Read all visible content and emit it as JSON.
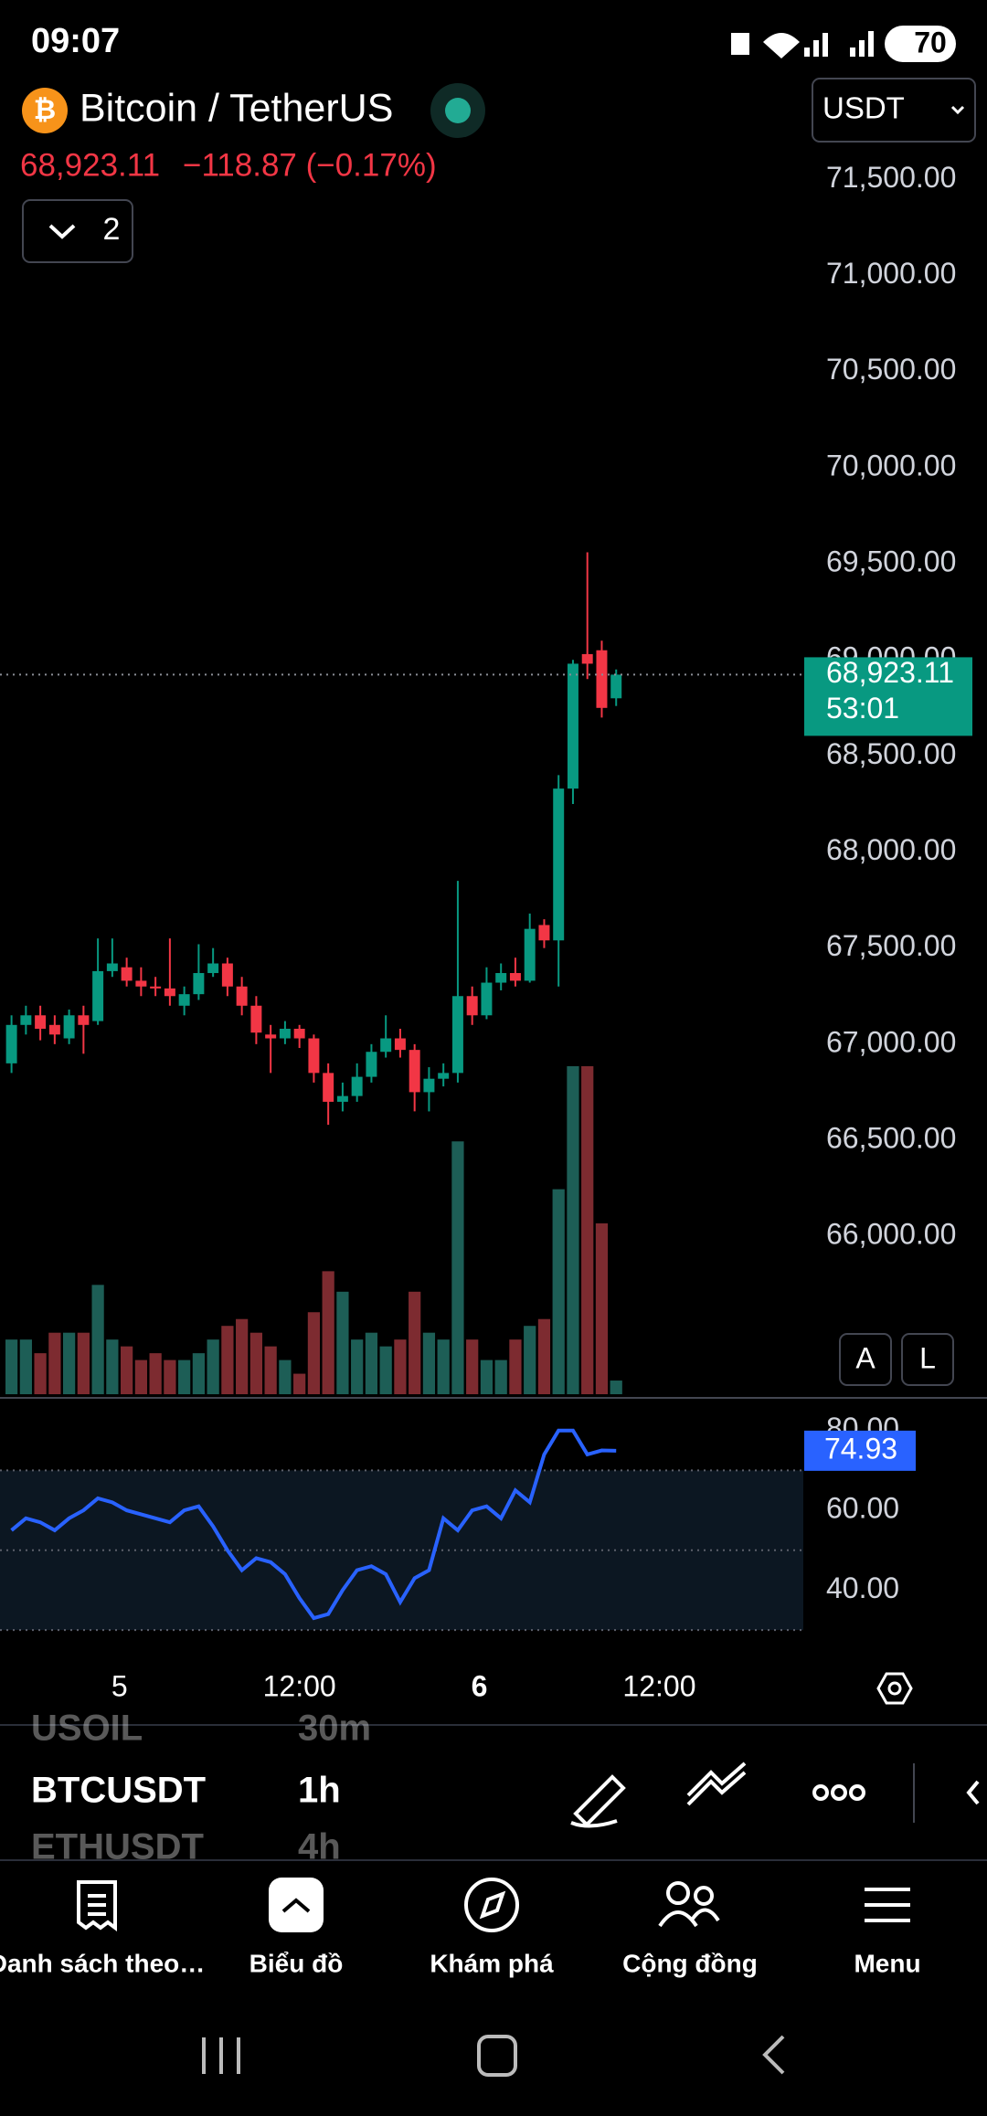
{
  "status_bar": {
    "time": "09:07",
    "battery": "70"
  },
  "header": {
    "symbol": "Bitcoin / TetherUS",
    "price": "68,923.11",
    "change": "−118.87 (−0.17%)",
    "indicator_count": "2",
    "currency": "USDT"
  },
  "scale_buttons": [
    "A",
    "L"
  ],
  "chart_data": [
    {
      "type": "candlestick",
      "up_color": "#089981",
      "down_color": "#f23645",
      "volume_up_color": "#1d5e56",
      "volume_down_color": "#7d2b30",
      "open": [
        66900,
        67100,
        67150,
        67100,
        67030,
        67150,
        67120,
        67380,
        67400,
        67330,
        67300,
        67290,
        67200,
        67260,
        67370,
        67420,
        67300,
        67200,
        67050,
        67030,
        67080,
        67030,
        66850,
        66700,
        66730,
        66830,
        66960,
        67030,
        66970,
        66750,
        66820,
        66850,
        67250,
        67150,
        67320,
        67370,
        67330,
        67620,
        67540,
        68330,
        69030,
        69050,
        68800
      ],
      "high": [
        67150,
        67200,
        67200,
        67150,
        67180,
        67200,
        67550,
        67550,
        67450,
        67400,
        67350,
        67550,
        67300,
        67520,
        67500,
        67450,
        67350,
        67250,
        67100,
        67120,
        67100,
        67050,
        66900,
        66800,
        66900,
        67000,
        67150,
        67080,
        67000,
        66880,
        66900,
        67850,
        67300,
        67400,
        67420,
        67450,
        67680,
        67650,
        68400,
        69000,
        69560,
        69100,
        68950
      ],
      "low": [
        66850,
        67050,
        67020,
        67000,
        67000,
        66950,
        67100,
        67350,
        67300,
        67250,
        67250,
        67200,
        67150,
        67230,
        67350,
        67250,
        67150,
        67000,
        66850,
        67000,
        66980,
        66800,
        66580,
        66650,
        66700,
        66800,
        66930,
        66930,
        66650,
        66650,
        66780,
        66800,
        67100,
        67130,
        67280,
        67300,
        67320,
        67500,
        67300,
        68250,
        68900,
        68700,
        68760
      ],
      "close": [
        67100,
        67150,
        67080,
        67050,
        67150,
        67100,
        67380,
        67420,
        67330,
        67300,
        67290,
        67250,
        67260,
        67370,
        67420,
        67300,
        67200,
        67060,
        67030,
        67080,
        67030,
        66850,
        66700,
        66730,
        66830,
        66960,
        67030,
        66970,
        66750,
        66820,
        66850,
        67250,
        67150,
        67320,
        67370,
        67330,
        67600,
        67540,
        68330,
        68980,
        68980,
        68750,
        68923.11
      ],
      "volume": [
        40,
        40,
        30,
        45,
        45,
        45,
        80,
        40,
        35,
        25,
        30,
        25,
        25,
        30,
        40,
        50,
        55,
        45,
        35,
        25,
        15,
        60,
        90,
        75,
        40,
        45,
        35,
        40,
        75,
        45,
        40,
        185,
        40,
        25,
        25,
        40,
        50,
        55,
        150,
        240,
        240,
        125,
        10
      ],
      "last_price": {
        "value": 68923.11,
        "label": "68,923.11"
      },
      "countdown": "53:01",
      "xlim": [
        -0.8,
        55
      ],
      "xticks": [
        {
          "value": 7.5,
          "label": "5"
        },
        {
          "value": 20,
          "label": "12:00"
        },
        {
          "value": 32.5,
          "label": "6"
        },
        {
          "value": 45,
          "label": "12:00"
        }
      ],
      "ylim": [
        65178,
        71721
      ],
      "yticks": [
        {
          "value": 66000,
          "label": "66,000.00"
        },
        {
          "value": 66500,
          "label": "66,500.00"
        },
        {
          "value": 67000,
          "label": "67,000.00"
        },
        {
          "value": 67500,
          "label": "67,500.00"
        },
        {
          "value": 68000,
          "label": "68,000.00"
        },
        {
          "value": 68500,
          "label": "68,500.00"
        },
        {
          "value": 69000,
          "label": "69,000.00"
        },
        {
          "value": 69500,
          "label": "69,500.00"
        },
        {
          "value": 70000,
          "label": "70,000.00"
        },
        {
          "value": 70500,
          "label": "70,500.00"
        },
        {
          "value": 71000,
          "label": "71,000.00"
        },
        {
          "value": 71500,
          "label": "71,500.00"
        }
      ]
    },
    {
      "type": "line",
      "color": "#2962ff",
      "band_color": "#0c1722",
      "levels": [
        30,
        50,
        70
      ],
      "values": [
        55,
        58,
        57,
        55,
        58,
        60,
        63,
        62,
        60,
        59,
        58,
        57,
        60,
        61,
        56,
        50,
        45,
        48,
        47,
        44,
        38,
        33,
        34,
        40,
        45,
        46,
        44,
        37,
        43,
        45,
        58,
        55,
        60,
        61,
        58,
        65,
        62,
        74,
        80,
        80,
        74,
        75,
        74.93
      ],
      "value_label": "74.93",
      "xlim": [
        -0.8,
        55
      ],
      "ylim": [
        29.8,
        86.8
      ],
      "yticks": [
        {
          "value": 40,
          "label": "40.00"
        },
        {
          "value": 60,
          "label": "60.00"
        },
        {
          "value": 80,
          "label": "80.00"
        }
      ]
    }
  ],
  "symbol_list": [
    {
      "symbol": "USOIL",
      "interval": "30m"
    },
    {
      "symbol": "BTCUSDT",
      "interval": "1h"
    },
    {
      "symbol": "ETHUSDT",
      "interval": "4h"
    }
  ],
  "nav": [
    "Danh sách theo…",
    "Biểu đồ",
    "Khám phá",
    "Cộng đồng",
    "Menu"
  ]
}
